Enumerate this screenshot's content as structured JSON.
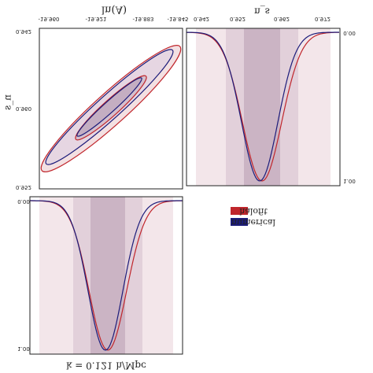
{
  "title": "k = 0.121 h/Mpc",
  "axes": {
    "x_label": "ln(A)",
    "y_label": "n_s",
    "ns_label": "n_s"
  },
  "ticks": {
    "lnA": [
      "-19.960",
      "-19.921",
      "-19.883",
      "-19.845"
    ],
    "ns_top": [
      "0.942",
      "0.952",
      "0.962",
      "0.972"
    ],
    "ns_left": [
      "0.942",
      "0.960",
      "0.952"
    ],
    "prob_right": [
      "0.00",
      "1.00"
    ],
    "prob_left": [
      "0.00",
      "1.00"
    ]
  },
  "legend": [
    {
      "name": "halofit",
      "color": "#c0262c"
    },
    {
      "name": "numerical",
      "color": "#1c1c7a"
    }
  ]
}
